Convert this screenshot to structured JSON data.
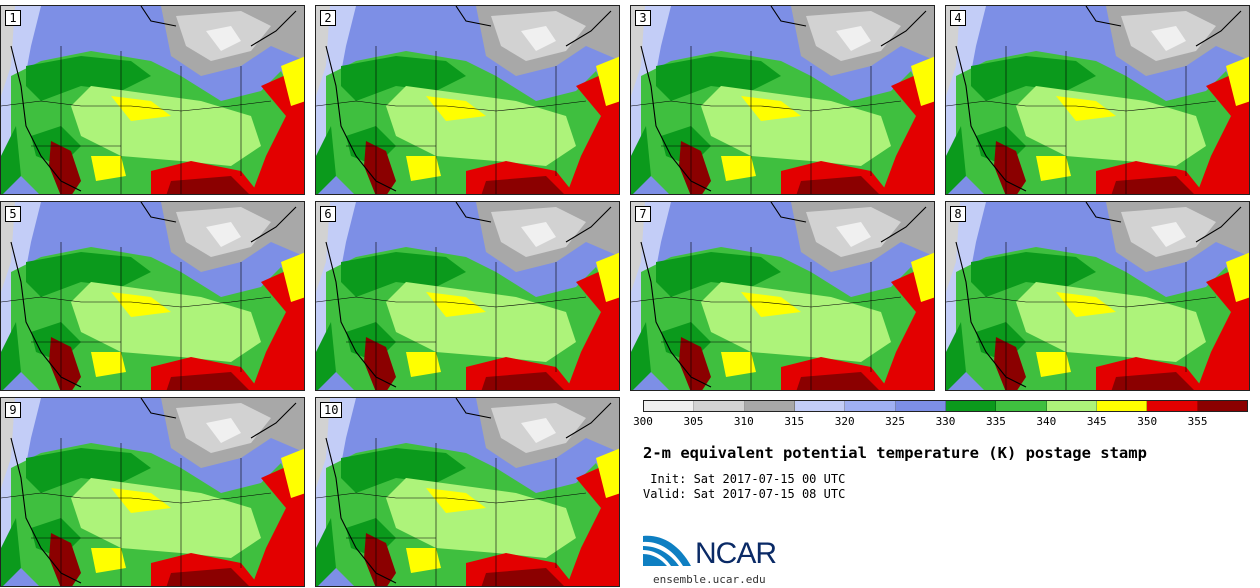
{
  "members": [
    "1",
    "2",
    "3",
    "4",
    "5",
    "6",
    "7",
    "8",
    "9",
    "10"
  ],
  "colorbar": {
    "ticks": [
      "300",
      "305",
      "310",
      "315",
      "320",
      "325",
      "330",
      "335",
      "340",
      "345",
      "350",
      "355"
    ],
    "colors": [
      "#f0f0f0",
      "#d2d2d2",
      "#a8a8a8",
      "#c3cdf7",
      "#a0b0f3",
      "#7d8fe6",
      "#0b9a1c",
      "#3fbf3f",
      "#adf37a",
      "#ffff00",
      "#e30000",
      "#8b0000"
    ]
  },
  "title": "2-m equivalent potential temperature (K) postage stamp",
  "init": " Init: Sat 2017-07-15 00 UTC",
  "valid": "Valid: Sat 2017-07-15 08 UTC",
  "logo": {
    "icon": "ncar-swoosh-icon",
    "text": "NCAR",
    "url_text": "ensemble.ucar.edu"
  }
}
